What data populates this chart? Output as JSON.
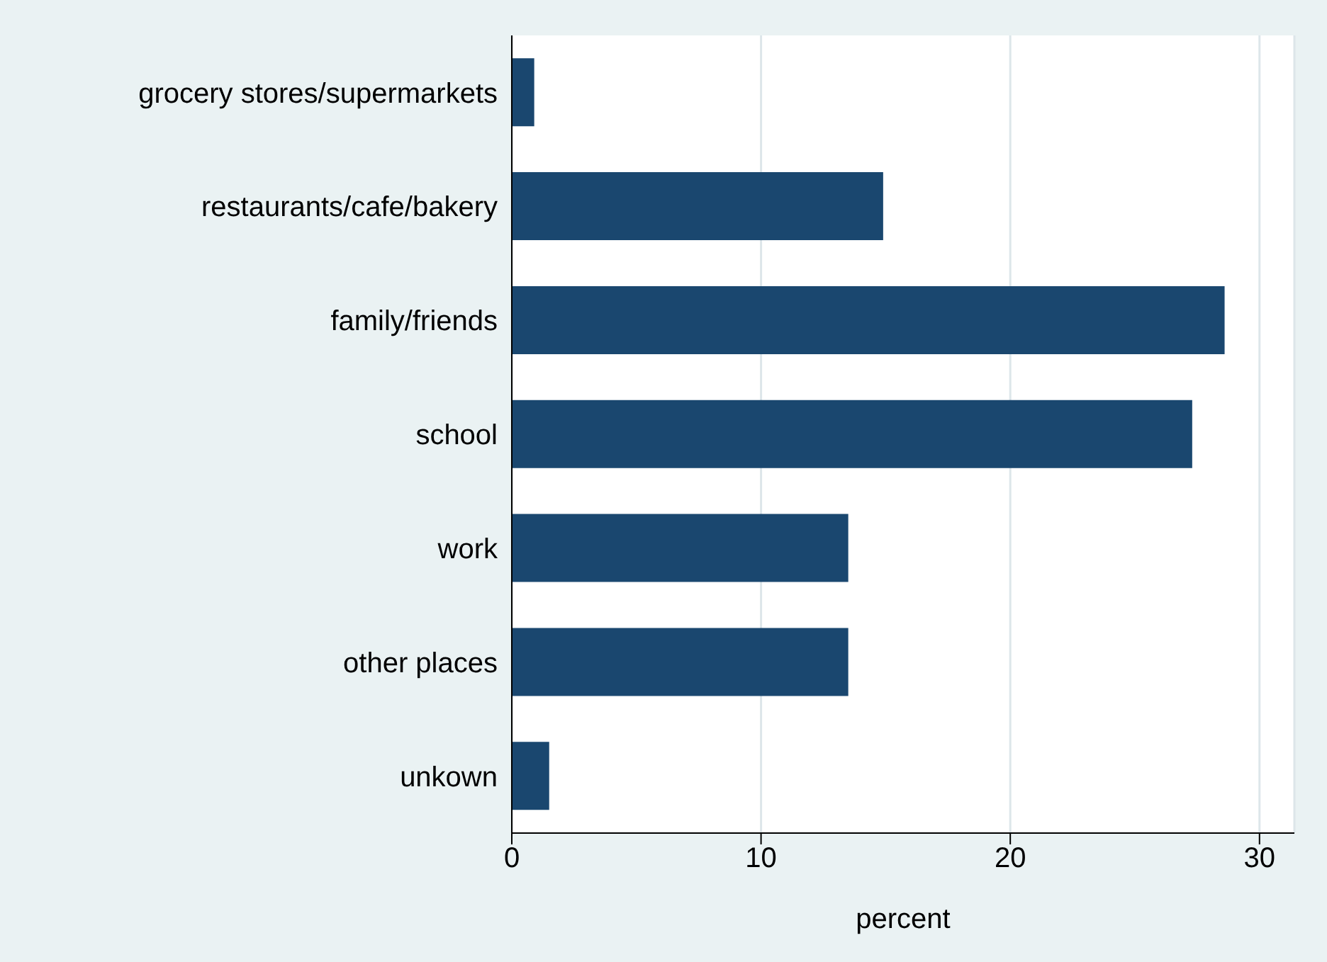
{
  "chart_data": {
    "type": "bar",
    "orientation": "horizontal",
    "xlabel": "percent",
    "categories": [
      "grocery stores/supermarkets",
      "restaurants/cafe/bakery",
      "family/friends",
      "school",
      "work",
      "other places",
      "unkown"
    ],
    "values": [
      0.9,
      14.9,
      28.6,
      27.3,
      13.5,
      13.5,
      1.5
    ],
    "color": "#1a476f",
    "xlim": [
      0,
      31.4
    ],
    "xticks": [
      0,
      10,
      20,
      30
    ],
    "grid": "x"
  }
}
